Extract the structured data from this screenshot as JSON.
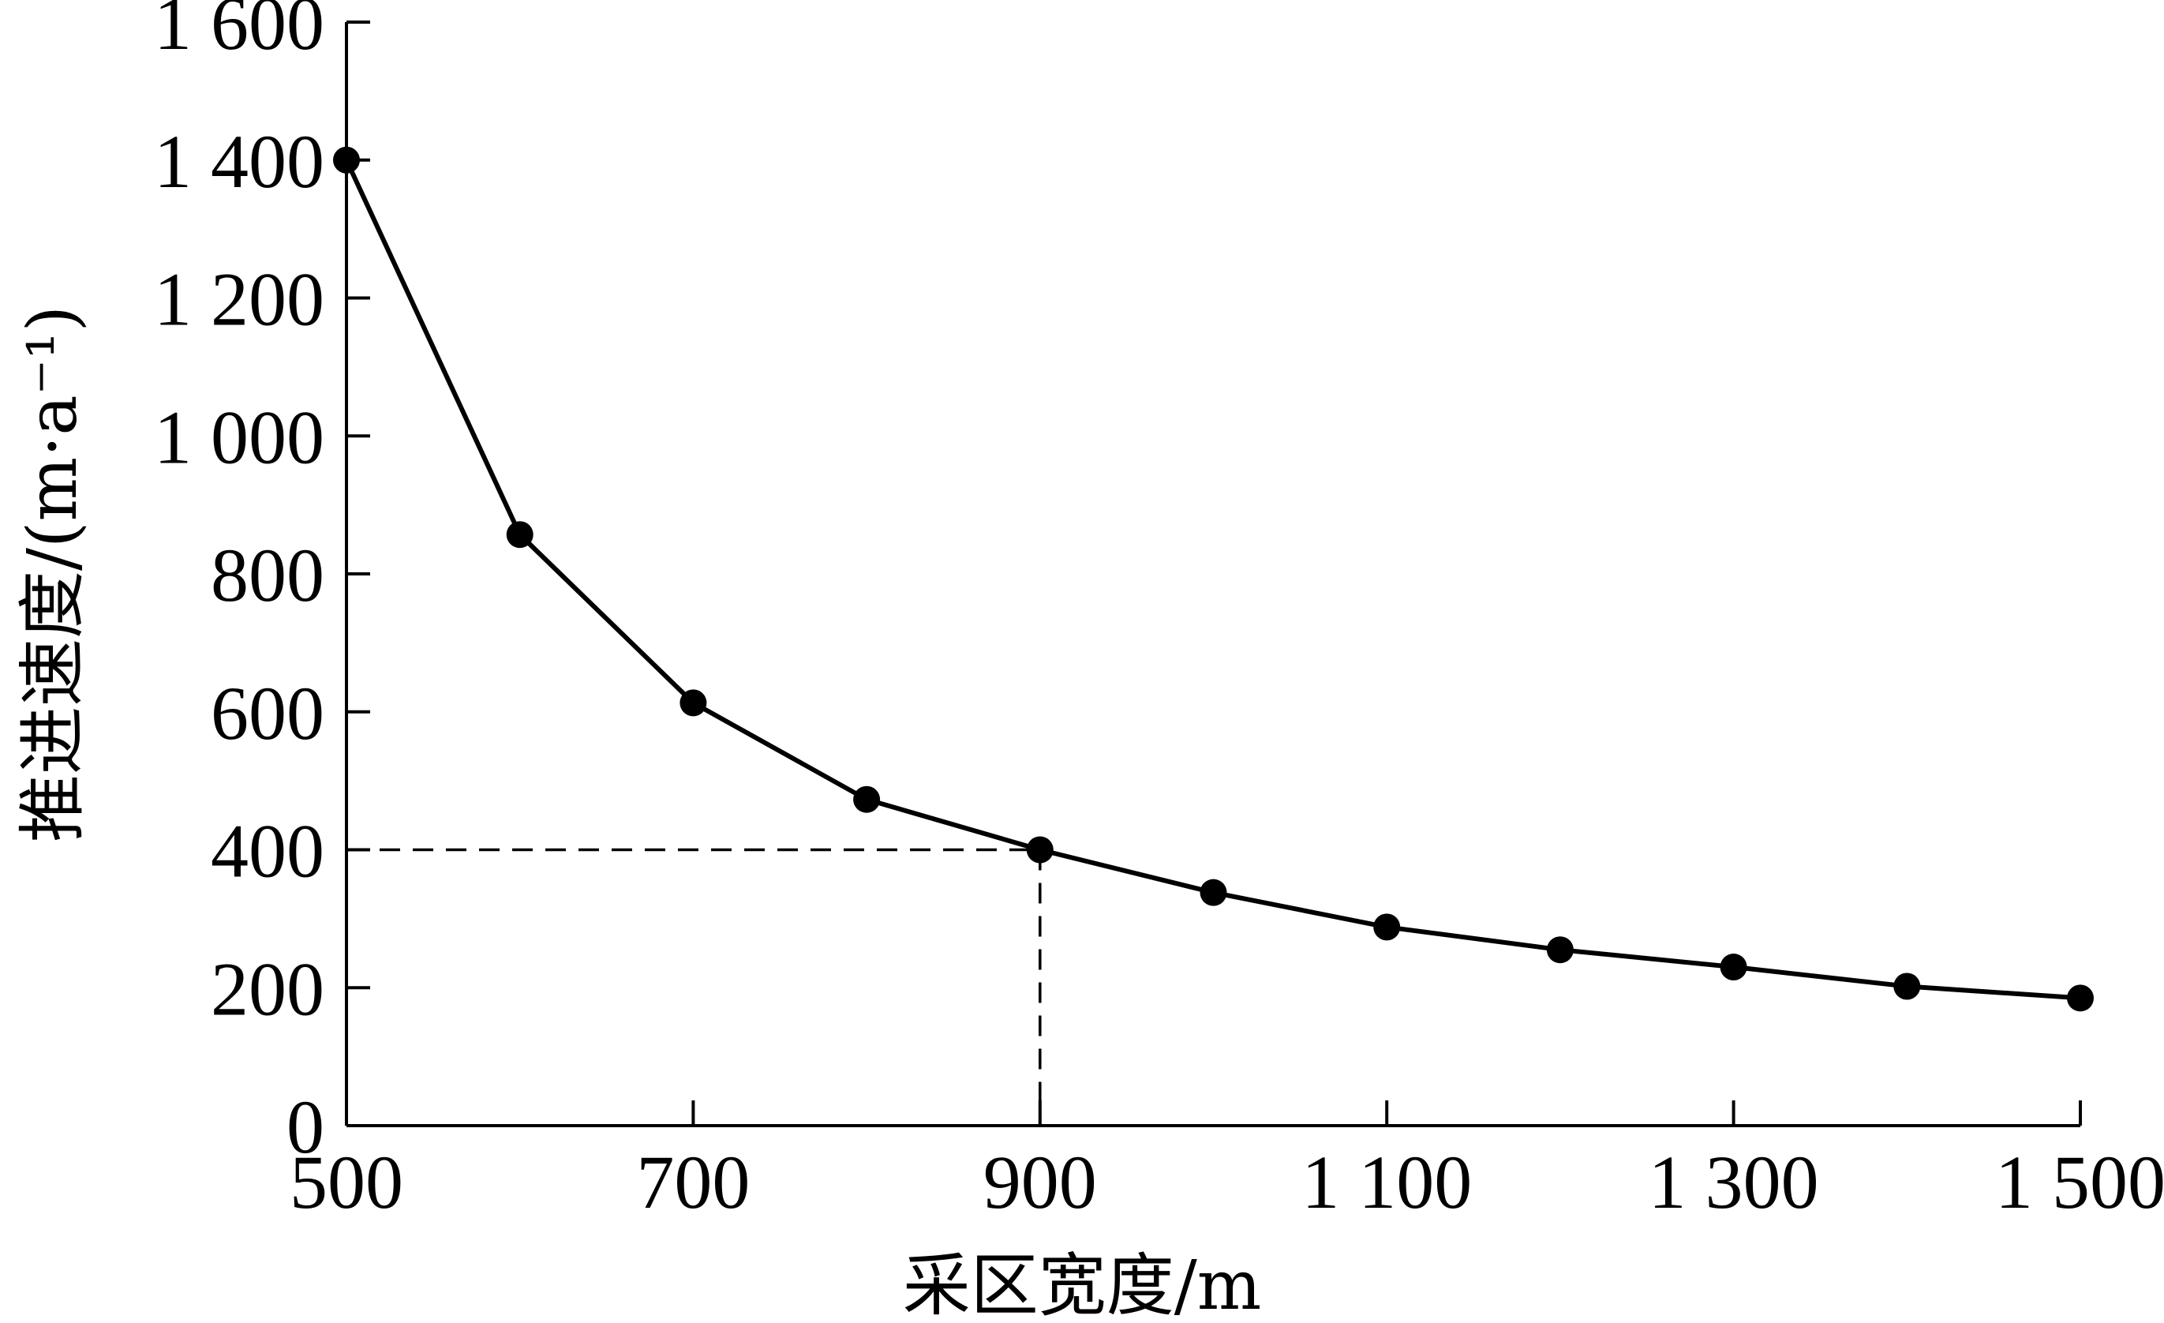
{
  "chart_data": {
    "type": "line",
    "title": "",
    "xlabel": "采区宽度/m",
    "ylabel": "推进速度/(m·a⁻¹)",
    "xlim": [
      500,
      1500
    ],
    "ylim": [
      0,
      1600
    ],
    "x_ticks": [
      500,
      700,
      900,
      1100,
      1300,
      1500
    ],
    "x_tick_labels": [
      "500",
      "700",
      "900",
      "1 100",
      "1 300",
      "1 500"
    ],
    "y_ticks": [
      0,
      200,
      400,
      600,
      800,
      1000,
      1200,
      1400,
      1600
    ],
    "y_tick_labels": [
      "0",
      "200",
      "400",
      "600",
      "800",
      "1 000",
      "1 200",
      "1 400",
      "1 600"
    ],
    "grid": false,
    "series": [
      {
        "x": [
          500,
          600,
          700,
          800,
          900,
          1000,
          1100,
          1200,
          1300,
          1400,
          1500
        ],
        "y": [
          1400,
          857,
          613,
          473,
          400,
          338,
          288,
          255,
          230,
          202,
          185
        ],
        "marker": "filled-circle",
        "color": "#000000"
      }
    ],
    "reference_lines": [
      {
        "style": "dashed",
        "from": [
          500,
          400
        ],
        "to": [
          900,
          400
        ]
      },
      {
        "style": "dashed",
        "from": [
          900,
          400
        ],
        "to": [
          900,
          0
        ]
      }
    ]
  }
}
